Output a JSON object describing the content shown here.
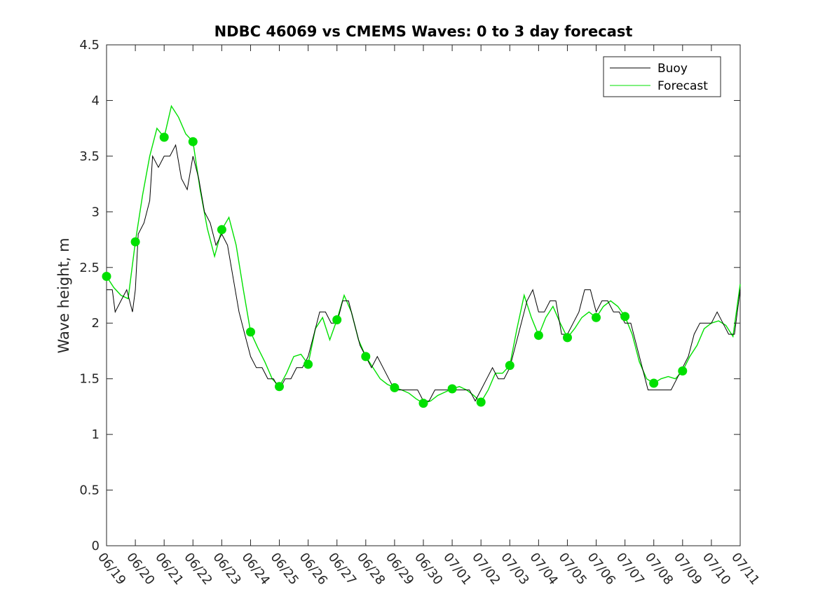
{
  "chart_data": {
    "type": "line",
    "title": "NDBC 46069 vs CMEMS Waves: 0 to 3 day forecast",
    "xlabel": "",
    "ylabel": "Wave height, m",
    "xlim": [
      0,
      22
    ],
    "ylim": [
      0,
      4.5
    ],
    "x_tick_labels": [
      "06/19",
      "06/20",
      "06/21",
      "06/22",
      "06/23",
      "06/24",
      "06/25",
      "06/26",
      "06/27",
      "06/28",
      "06/29",
      "06/30",
      "07/01",
      "07/02",
      "07/03",
      "07/04",
      "07/05",
      "07/06",
      "07/07",
      "07/08",
      "07/09",
      "07/10",
      "07/11"
    ],
    "y_ticks": [
      0,
      0.5,
      1,
      1.5,
      2,
      2.5,
      3,
      3.5,
      4,
      4.5
    ],
    "grid": false,
    "legend_position": "top-right",
    "colors": {
      "buoy": "#000000",
      "forecast": "#00e000",
      "axis": "#262626"
    },
    "series": [
      {
        "name": "Buoy",
        "x_unit": "days since 06/19",
        "points": [
          [
            0,
            2.3
          ],
          [
            0.2,
            2.3
          ],
          [
            0.3,
            2.1
          ],
          [
            0.5,
            2.2
          ],
          [
            0.7,
            2.3
          ],
          [
            0.9,
            2.1
          ],
          [
            1.0,
            2.3
          ],
          [
            1.1,
            2.8
          ],
          [
            1.3,
            2.9
          ],
          [
            1.5,
            3.1
          ],
          [
            1.6,
            3.5
          ],
          [
            1.8,
            3.4
          ],
          [
            2.0,
            3.5
          ],
          [
            2.2,
            3.5
          ],
          [
            2.4,
            3.6
          ],
          [
            2.6,
            3.3
          ],
          [
            2.8,
            3.2
          ],
          [
            3.0,
            3.5
          ],
          [
            3.2,
            3.3
          ],
          [
            3.4,
            3.0
          ],
          [
            3.6,
            2.9
          ],
          [
            3.8,
            2.7
          ],
          [
            4.0,
            2.8
          ],
          [
            4.2,
            2.7
          ],
          [
            4.4,
            2.4
          ],
          [
            4.6,
            2.1
          ],
          [
            4.8,
            1.9
          ],
          [
            5.0,
            1.7
          ],
          [
            5.2,
            1.6
          ],
          [
            5.4,
            1.6
          ],
          [
            5.6,
            1.5
          ],
          [
            5.8,
            1.5
          ],
          [
            6.0,
            1.4
          ],
          [
            6.2,
            1.5
          ],
          [
            6.4,
            1.5
          ],
          [
            6.6,
            1.6
          ],
          [
            6.8,
            1.6
          ],
          [
            7.0,
            1.7
          ],
          [
            7.2,
            1.9
          ],
          [
            7.4,
            2.1
          ],
          [
            7.6,
            2.1
          ],
          [
            7.8,
            2.0
          ],
          [
            8.0,
            2.0
          ],
          [
            8.2,
            2.2
          ],
          [
            8.4,
            2.2
          ],
          [
            8.6,
            2.0
          ],
          [
            8.8,
            1.8
          ],
          [
            9.0,
            1.7
          ],
          [
            9.2,
            1.6
          ],
          [
            9.4,
            1.7
          ],
          [
            9.6,
            1.6
          ],
          [
            9.8,
            1.5
          ],
          [
            10.0,
            1.4
          ],
          [
            10.2,
            1.4
          ],
          [
            10.4,
            1.4
          ],
          [
            10.6,
            1.4
          ],
          [
            10.8,
            1.4
          ],
          [
            11.0,
            1.3
          ],
          [
            11.2,
            1.3
          ],
          [
            11.4,
            1.4
          ],
          [
            11.6,
            1.4
          ],
          [
            11.8,
            1.4
          ],
          [
            12.0,
            1.4
          ],
          [
            12.2,
            1.4
          ],
          [
            12.4,
            1.4
          ],
          [
            12.6,
            1.4
          ],
          [
            12.8,
            1.3
          ],
          [
            13.0,
            1.4
          ],
          [
            13.2,
            1.5
          ],
          [
            13.4,
            1.6
          ],
          [
            13.6,
            1.5
          ],
          [
            13.8,
            1.5
          ],
          [
            14.0,
            1.6
          ],
          [
            14.2,
            1.8
          ],
          [
            14.4,
            2.0
          ],
          [
            14.6,
            2.2
          ],
          [
            14.8,
            2.3
          ],
          [
            15.0,
            2.1
          ],
          [
            15.2,
            2.1
          ],
          [
            15.4,
            2.2
          ],
          [
            15.6,
            2.2
          ],
          [
            15.8,
            1.9
          ],
          [
            16.0,
            1.9
          ],
          [
            16.2,
            2.0
          ],
          [
            16.4,
            2.1
          ],
          [
            16.6,
            2.3
          ],
          [
            16.8,
            2.3
          ],
          [
            17.0,
            2.1
          ],
          [
            17.2,
            2.2
          ],
          [
            17.4,
            2.2
          ],
          [
            17.6,
            2.1
          ],
          [
            17.8,
            2.1
          ],
          [
            18.0,
            2.0
          ],
          [
            18.2,
            2.0
          ],
          [
            18.4,
            1.8
          ],
          [
            18.6,
            1.6
          ],
          [
            18.8,
            1.4
          ],
          [
            19.0,
            1.4
          ],
          [
            19.2,
            1.4
          ],
          [
            19.4,
            1.4
          ],
          [
            19.6,
            1.4
          ],
          [
            19.8,
            1.5
          ],
          [
            20.0,
            1.6
          ],
          [
            20.2,
            1.7
          ],
          [
            20.4,
            1.9
          ],
          [
            20.6,
            2.0
          ],
          [
            20.8,
            2.0
          ],
          [
            21.0,
            2.0
          ],
          [
            21.2,
            2.1
          ],
          [
            21.4,
            2.0
          ],
          [
            21.6,
            1.9
          ],
          [
            21.8,
            1.9
          ],
          [
            22.0,
            2.3
          ]
        ]
      },
      {
        "name": "Forecast",
        "x_unit": "days since 06/19",
        "points": [
          [
            0,
            2.42
          ],
          [
            0.25,
            2.32
          ],
          [
            0.5,
            2.25
          ],
          [
            0.75,
            2.22
          ],
          [
            1.0,
            2.73
          ],
          [
            1.25,
            3.15
          ],
          [
            1.5,
            3.5
          ],
          [
            1.75,
            3.75
          ],
          [
            2.0,
            3.67
          ],
          [
            2.25,
            3.95
          ],
          [
            2.5,
            3.85
          ],
          [
            2.75,
            3.7
          ],
          [
            3.0,
            3.63
          ],
          [
            3.25,
            3.2
          ],
          [
            3.5,
            2.85
          ],
          [
            3.75,
            2.6
          ],
          [
            4.0,
            2.84
          ],
          [
            4.25,
            2.95
          ],
          [
            4.5,
            2.7
          ],
          [
            4.75,
            2.3
          ],
          [
            5.0,
            1.92
          ],
          [
            5.25,
            1.78
          ],
          [
            5.5,
            1.65
          ],
          [
            5.75,
            1.5
          ],
          [
            6.0,
            1.43
          ],
          [
            6.25,
            1.55
          ],
          [
            6.5,
            1.7
          ],
          [
            6.75,
            1.72
          ],
          [
            7.0,
            1.63
          ],
          [
            7.25,
            1.95
          ],
          [
            7.5,
            2.05
          ],
          [
            7.75,
            1.85
          ],
          [
            8.0,
            2.03
          ],
          [
            8.25,
            2.25
          ],
          [
            8.5,
            2.1
          ],
          [
            8.75,
            1.85
          ],
          [
            9.0,
            1.7
          ],
          [
            9.25,
            1.6
          ],
          [
            9.5,
            1.5
          ],
          [
            9.75,
            1.45
          ],
          [
            10.0,
            1.42
          ],
          [
            10.25,
            1.4
          ],
          [
            10.5,
            1.37
          ],
          [
            10.75,
            1.32
          ],
          [
            11.0,
            1.28
          ],
          [
            11.25,
            1.3
          ],
          [
            11.5,
            1.35
          ],
          [
            11.75,
            1.38
          ],
          [
            12.0,
            1.41
          ],
          [
            12.25,
            1.43
          ],
          [
            12.5,
            1.4
          ],
          [
            12.75,
            1.35
          ],
          [
            13.0,
            1.29
          ],
          [
            13.25,
            1.4
          ],
          [
            13.5,
            1.55
          ],
          [
            13.75,
            1.55
          ],
          [
            14.0,
            1.62
          ],
          [
            14.25,
            1.95
          ],
          [
            14.5,
            2.25
          ],
          [
            14.75,
            2.05
          ],
          [
            15.0,
            1.89
          ],
          [
            15.25,
            2.05
          ],
          [
            15.5,
            2.15
          ],
          [
            15.75,
            2.0
          ],
          [
            16.0,
            1.87
          ],
          [
            16.25,
            1.95
          ],
          [
            16.5,
            2.05
          ],
          [
            16.75,
            2.1
          ],
          [
            17.0,
            2.05
          ],
          [
            17.25,
            2.15
          ],
          [
            17.5,
            2.2
          ],
          [
            17.75,
            2.15
          ],
          [
            18.0,
            2.06
          ],
          [
            18.25,
            1.9
          ],
          [
            18.5,
            1.65
          ],
          [
            18.75,
            1.5
          ],
          [
            19.0,
            1.46
          ],
          [
            19.25,
            1.5
          ],
          [
            19.5,
            1.52
          ],
          [
            19.75,
            1.5
          ],
          [
            20.0,
            1.57
          ],
          [
            20.25,
            1.7
          ],
          [
            20.5,
            1.8
          ],
          [
            20.75,
            1.95
          ],
          [
            21.0,
            2.0
          ],
          [
            21.25,
            2.02
          ],
          [
            21.5,
            1.98
          ],
          [
            21.75,
            1.88
          ],
          [
            22.0,
            2.35
          ]
        ]
      }
    ]
  }
}
